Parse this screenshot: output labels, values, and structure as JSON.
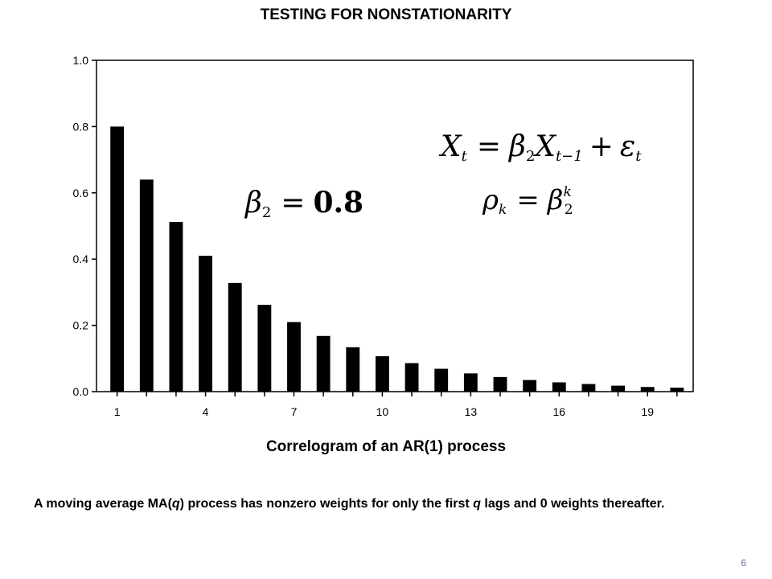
{
  "slide": {
    "title": "TESTING FOR NONSTATIONARITY",
    "caption": "Correlogram of an AR(1) process",
    "body_parts": [
      "A moving average MA(",
      "q",
      ") process has nonzero weights for only the first ",
      "q",
      " lags and 0 weights thereafter."
    ],
    "page_number": "6"
  },
  "equations": {
    "ar_process": {
      "lhs": "X",
      "lhs_sub": "t",
      "eq": "=",
      "coef": "β",
      "coef_sub": "2",
      "var": "X",
      "var_sub": "t−1",
      "plus": "+",
      "err": "ε",
      "err_sub": "t"
    },
    "autocorrelation": {
      "lhs": "ρ",
      "lhs_sub": "k",
      "eq": "=",
      "coef": "β",
      "coef_sub": "2",
      "coef_sup": "k"
    },
    "beta_value": {
      "coef": "β",
      "coef_sub": "2",
      "eq": "=",
      "value": "0.8"
    }
  },
  "chart_data": {
    "type": "bar",
    "title": "Correlogram of an AR(1) process",
    "xlabel": "",
    "ylabel": "",
    "x": [
      1,
      2,
      3,
      4,
      5,
      6,
      7,
      8,
      9,
      10,
      11,
      12,
      13,
      14,
      15,
      16,
      17,
      18,
      19,
      20
    ],
    "values": [
      0.8,
      0.64,
      0.512,
      0.41,
      0.328,
      0.262,
      0.21,
      0.168,
      0.134,
      0.107,
      0.086,
      0.069,
      0.055,
      0.044,
      0.035,
      0.028,
      0.023,
      0.018,
      0.014,
      0.012
    ],
    "x_tick_labels": [
      "1",
      "4",
      "7",
      "10",
      "13",
      "16",
      "19"
    ],
    "y_tick_labels": [
      "0.0",
      "0.2",
      "0.4",
      "0.6",
      "0.8",
      "1.0"
    ],
    "y_ticks": [
      0,
      0.2,
      0.4,
      0.6,
      0.8,
      1.0
    ],
    "ylim": [
      0,
      1.0
    ],
    "grid": false,
    "bar_color": "#000000"
  }
}
